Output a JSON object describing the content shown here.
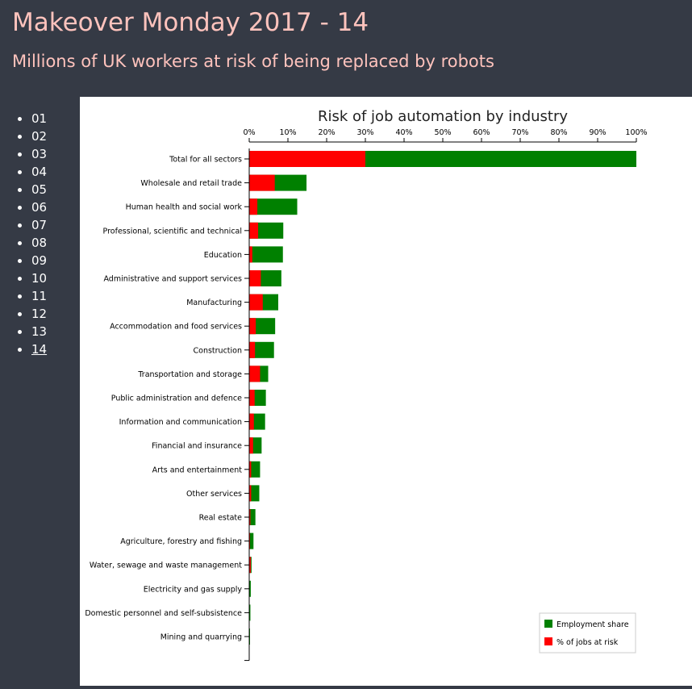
{
  "page": {
    "title": "Makeover Monday 2017 - 14",
    "subtitle": "Millions of UK workers at risk of being replaced by robots"
  },
  "nav": {
    "items": [
      "01",
      "02",
      "03",
      "04",
      "05",
      "06",
      "07",
      "08",
      "09",
      "10",
      "11",
      "12",
      "13",
      "14"
    ],
    "active_index": 13
  },
  "colors": {
    "background": "#353a45",
    "header_text": "#ffc3bd",
    "employment": "#008000",
    "risk": "#ff0000"
  },
  "chart_data": {
    "type": "bar",
    "orientation": "horizontal",
    "stacked": false,
    "title": "Risk of job automation by industry",
    "xlim": [
      0,
      100
    ],
    "xticks": [
      0,
      10,
      20,
      30,
      40,
      50,
      60,
      70,
      80,
      90,
      100
    ],
    "tick_suffix": "%",
    "categories": [
      "Total for all sectors",
      "Wholesale and retail trade",
      "Human health and social work",
      "Professional, scientific and technical",
      "Education",
      "Administrative and support services",
      "Manufacturing",
      "Accommodation and food services",
      "Construction",
      "Transportation and storage",
      "Public administration and defence",
      "Information and communication",
      "Financial and insurance",
      "Arts and entertainment",
      "Other services",
      "Real estate",
      "Agriculture, forestry and fishing",
      "Water, sewage and waste management",
      "Electricity and gas supply",
      "Domestic personnel and self-subsistence",
      "Mining and quarrying"
    ],
    "series": [
      {
        "name": "Employment share",
        "values": [
          100,
          14.8,
          12.4,
          8.8,
          8.7,
          8.3,
          7.5,
          6.7,
          6.4,
          4.9,
          4.3,
          4.1,
          3.2,
          2.8,
          2.6,
          1.6,
          1.1,
          0.6,
          0.4,
          0.3,
          0.2
        ]
      },
      {
        "name": "% of jobs at risk",
        "values": [
          30.0,
          6.6,
          2.1,
          2.3,
          0.8,
          3.0,
          3.5,
          1.7,
          1.5,
          2.8,
          1.4,
          1.2,
          1.0,
          0.5,
          0.5,
          0.3,
          0.2,
          0.4,
          0.1,
          0.1,
          0.05
        ]
      }
    ],
    "legend_position": "bottom-right"
  }
}
